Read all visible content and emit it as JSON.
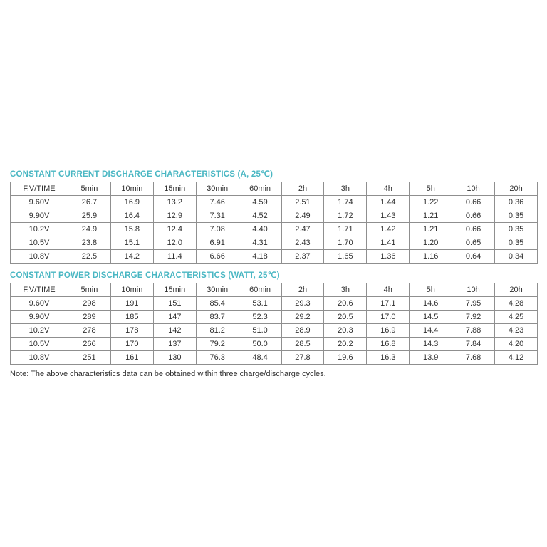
{
  "colors": {
    "title_teal": "#4ab7c3",
    "table_border": "#8f8f8f",
    "text": "#303030",
    "background": "#ffffff"
  },
  "tables": [
    {
      "title": "CONSTANT CURRENT DISCHARGE CHARACTERISTICS (A, 25℃)",
      "headers": [
        "F.V/TIME",
        "5min",
        "10min",
        "15min",
        "30min",
        "60min",
        "2h",
        "3h",
        "4h",
        "5h",
        "10h",
        "20h"
      ],
      "rows": [
        [
          "9.60V",
          "26.7",
          "16.9",
          "13.2",
          "7.46",
          "4.59",
          "2.51",
          "1.74",
          "1.44",
          "1.22",
          "0.66",
          "0.36"
        ],
        [
          "9.90V",
          "25.9",
          "16.4",
          "12.9",
          "7.31",
          "4.52",
          "2.49",
          "1.72",
          "1.43",
          "1.21",
          "0.66",
          "0.35"
        ],
        [
          "10.2V",
          "24.9",
          "15.8",
          "12.4",
          "7.08",
          "4.40",
          "2.47",
          "1.71",
          "1.42",
          "1.21",
          "0.66",
          "0.35"
        ],
        [
          "10.5V",
          "23.8",
          "15.1",
          "12.0",
          "6.91",
          "4.31",
          "2.43",
          "1.70",
          "1.41",
          "1.20",
          "0.65",
          "0.35"
        ],
        [
          "10.8V",
          "22.5",
          "14.2",
          "11.4",
          "6.66",
          "4.18",
          "2.37",
          "1.65",
          "1.36",
          "1.16",
          "0.64",
          "0.34"
        ]
      ]
    },
    {
      "title": "CONSTANT POWER DISCHARGE CHARACTERISTICS (WATT, 25℃)",
      "headers": [
        "F.V/TIME",
        "5min",
        "10min",
        "15min",
        "30min",
        "60min",
        "2h",
        "3h",
        "4h",
        "5h",
        "10h",
        "20h"
      ],
      "rows": [
        [
          "9.60V",
          "298",
          "191",
          "151",
          "85.4",
          "53.1",
          "29.3",
          "20.6",
          "17.1",
          "14.6",
          "7.95",
          "4.28"
        ],
        [
          "9.90V",
          "289",
          "185",
          "147",
          "83.7",
          "52.3",
          "29.2",
          "20.5",
          "17.0",
          "14.5",
          "7.92",
          "4.25"
        ],
        [
          "10.2V",
          "278",
          "178",
          "142",
          "81.2",
          "51.0",
          "28.9",
          "20.3",
          "16.9",
          "14.4",
          "7.88",
          "4.23"
        ],
        [
          "10.5V",
          "266",
          "170",
          "137",
          "79.2",
          "50.0",
          "28.5",
          "20.2",
          "16.8",
          "14.3",
          "7.84",
          "4.20"
        ],
        [
          "10.8V",
          "251",
          "161",
          "130",
          "76.3",
          "48.4",
          "27.8",
          "19.6",
          "16.3",
          "13.9",
          "7.68",
          "4.12"
        ]
      ]
    }
  ],
  "note": "Note: The above characteristics data can be obtained within three charge/discharge cycles."
}
